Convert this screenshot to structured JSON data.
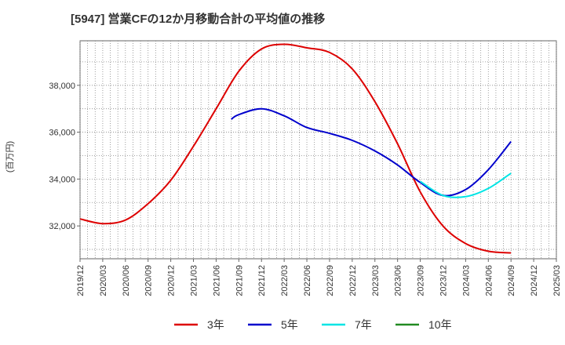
{
  "chart_data": {
    "type": "line",
    "title": "[5947]  営業CFの12か月移動合計の平均値の推移",
    "ylabel": "(百万円)",
    "xlabel": "",
    "ylim": [
      30600,
      39900
    ],
    "yticks": [
      32000,
      34000,
      36000,
      38000
    ],
    "ytick_labels": [
      "32,000",
      "34,000",
      "36,000",
      "38,000"
    ],
    "xticks": [
      "2019/12",
      "2020/03",
      "2020/06",
      "2020/09",
      "2020/12",
      "2021/03",
      "2021/06",
      "2021/09",
      "2021/12",
      "2022/03",
      "2022/06",
      "2022/09",
      "2022/12",
      "2023/03",
      "2023/06",
      "2023/09",
      "2023/12",
      "2024/03",
      "2024/06",
      "2024/09",
      "2024/12",
      "2025/03"
    ],
    "grid": true,
    "legend_position": "bottom",
    "series": [
      {
        "name": "3年",
        "color": "#dd0000",
        "points": [
          [
            "2019/12",
            32300
          ],
          [
            "2020/03",
            32100
          ],
          [
            "2020/06",
            32250
          ],
          [
            "2020/09",
            32950
          ],
          [
            "2020/12",
            33950
          ],
          [
            "2021/03",
            35400
          ],
          [
            "2021/06",
            37000
          ],
          [
            "2021/09",
            38600
          ],
          [
            "2021/12",
            39550
          ],
          [
            "2022/03",
            39750
          ],
          [
            "2022/06",
            39600
          ],
          [
            "2022/09",
            39400
          ],
          [
            "2022/12",
            38700
          ],
          [
            "2023/03",
            37300
          ],
          [
            "2023/06",
            35500
          ],
          [
            "2023/09",
            33450
          ],
          [
            "2023/12",
            32000
          ],
          [
            "2024/03",
            31250
          ],
          [
            "2024/06",
            30920
          ],
          [
            "2024/09",
            30850
          ]
        ]
      },
      {
        "name": "5年",
        "color": "#0000cc",
        "points": [
          [
            "2021/08",
            36550
          ],
          [
            "2021/09",
            36750
          ],
          [
            "2021/12",
            37000
          ],
          [
            "2022/03",
            36700
          ],
          [
            "2022/06",
            36200
          ],
          [
            "2022/09",
            35950
          ],
          [
            "2022/12",
            35650
          ],
          [
            "2023/03",
            35200
          ],
          [
            "2023/06",
            34600
          ],
          [
            "2023/09",
            33850
          ],
          [
            "2023/12",
            33300
          ],
          [
            "2024/03",
            33550
          ],
          [
            "2024/06",
            34400
          ],
          [
            "2024/09",
            35600
          ]
        ]
      },
      {
        "name": "7年",
        "color": "#00e5e5",
        "points": [
          [
            "2023/09",
            33900
          ],
          [
            "2023/12",
            33300
          ],
          [
            "2024/03",
            33250
          ],
          [
            "2024/06",
            33600
          ],
          [
            "2024/09",
            34250
          ]
        ]
      },
      {
        "name": "10年",
        "color": "#228b22",
        "points": []
      }
    ]
  }
}
